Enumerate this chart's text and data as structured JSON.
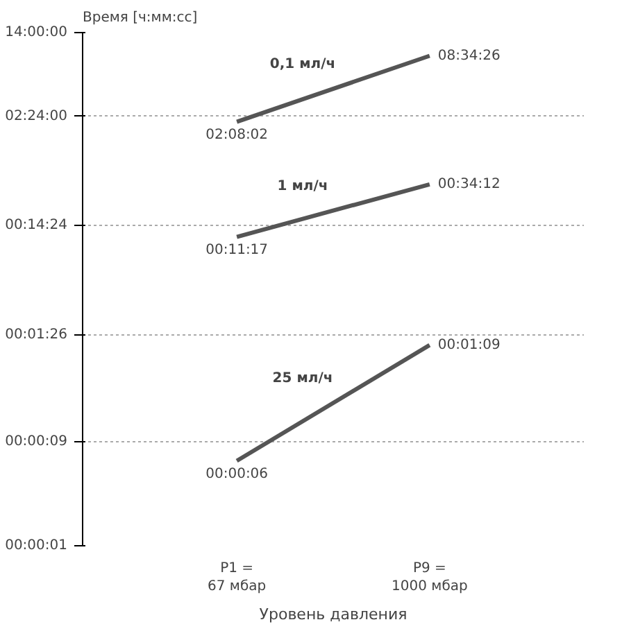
{
  "chart_data": {
    "type": "line",
    "xlabel": "Уровень давления",
    "ylabel": "Время [ч:мм:сс]",
    "categories": [
      "P1 =\n67 мбар",
      "P9 =\n1000 мбар"
    ],
    "series": [
      {
        "name": "0,1 мл/ч",
        "color": "#555555",
        "values": [
          7682,
          30866
        ],
        "value_labels": [
          "02:08:02",
          "08:34:26"
        ]
      },
      {
        "name": "1 мл/ч",
        "color": "#555555",
        "values": [
          677,
          2052
        ],
        "value_labels": [
          "00:11:17",
          "00:34:12"
        ]
      },
      {
        "name": "25 мл/ч",
        "color": "#555555",
        "values": [
          6,
          69
        ],
        "value_labels": [
          "00:00:06",
          "00:01:09"
        ]
      }
    ],
    "log": true,
    "ylim": [
      1,
      50400
    ],
    "yticks": [
      {
        "value": 1,
        "label": "00:00:01"
      },
      {
        "value": 9,
        "label": "00:00:09"
      },
      {
        "value": 86,
        "label": "00:01:26"
      },
      {
        "value": 864,
        "label": "00:14:24"
      },
      {
        "value": 8640,
        "label": "02:24:00"
      },
      {
        "value": 50400,
        "label": "14:00:00"
      }
    ],
    "grid": "y",
    "marker": "none",
    "line_style": "solid"
  }
}
